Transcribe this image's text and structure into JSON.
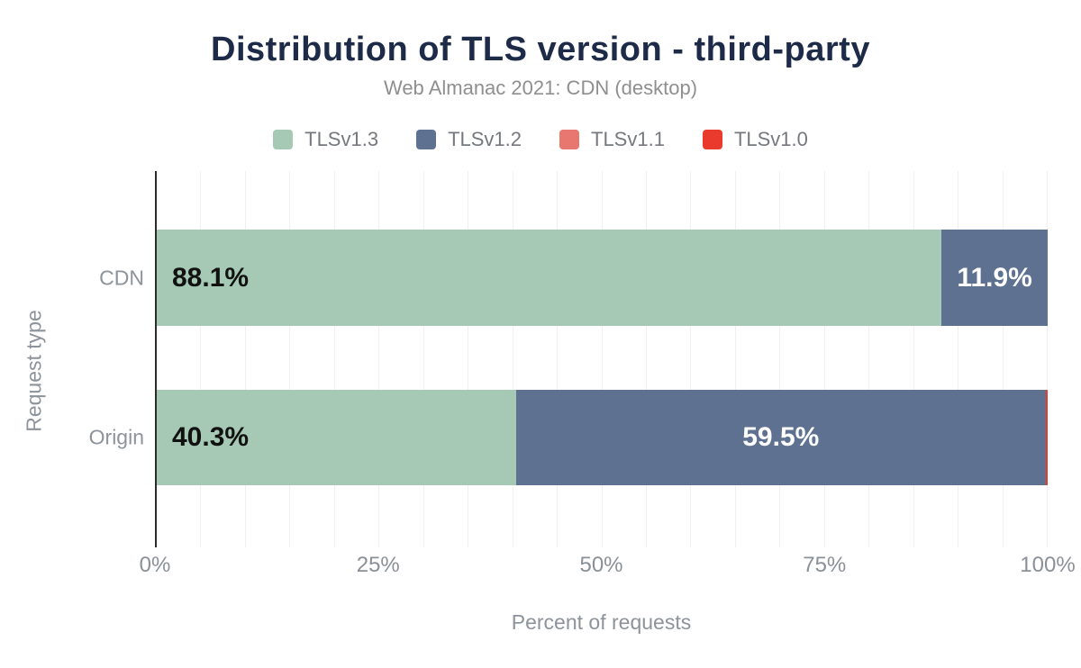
{
  "header": {
    "title": "Distribution of TLS version - third-party",
    "subtitle": "Web Almanac 2021: CDN (desktop)"
  },
  "colors": {
    "title_text": "#1d2b49",
    "subtitle_text": "#8f8f8f",
    "axis_text": "#8d939a",
    "tick_text": "#8a9097",
    "legend_text": "#75797e",
    "gridline": "#f0f0f1",
    "axis_line": "#2b2b2b",
    "tls13_green": "#a6c9b5",
    "tls12_blue": "#5e7190",
    "tls11_salmon": "#e8776f",
    "tls10_red": "#ea3a2d"
  },
  "chart_data": {
    "type": "bar",
    "orientation": "horizontal",
    "stacked": true,
    "title": "Distribution of TLS version - third-party",
    "subtitle": "Web Almanac 2021: CDN (desktop)",
    "xlabel": "Percent of requests",
    "ylabel": "Request type",
    "categories": [
      "CDN",
      "Origin"
    ],
    "x_ticks": [
      {
        "label": "0%",
        "value": 0
      },
      {
        "label": "25%",
        "value": 25
      },
      {
        "label": "50%",
        "value": 50
      },
      {
        "label": "75%",
        "value": 75
      },
      {
        "label": "100%",
        "value": 100
      }
    ],
    "xlim": [
      0,
      100
    ],
    "grid": true,
    "grid_step_pct": 5,
    "legend_position": "top",
    "series": [
      {
        "name": "TLSv1.3",
        "color": "#a6c9b5",
        "values": [
          88.1,
          40.3
        ],
        "data_labels": [
          "88.1%",
          "40.3%"
        ],
        "label_color": "#111111",
        "label_align": "start"
      },
      {
        "name": "TLSv1.2",
        "color": "#5e7190",
        "values": [
          11.9,
          59.5
        ],
        "data_labels": [
          "11.9%",
          "59.5%"
        ],
        "label_color": "#ffffff",
        "label_align": "center"
      },
      {
        "name": "TLSv1.1",
        "color": "#e8776f",
        "values": [
          0,
          0
        ],
        "data_labels": [
          "",
          ""
        ],
        "label_color": "#ffffff",
        "label_align": "center"
      },
      {
        "name": "TLSv1.0",
        "color": "#ea3a2d",
        "values": [
          0,
          0.2
        ],
        "data_labels": [
          "",
          ""
        ],
        "label_color": "#ffffff",
        "label_align": "center"
      }
    ]
  }
}
